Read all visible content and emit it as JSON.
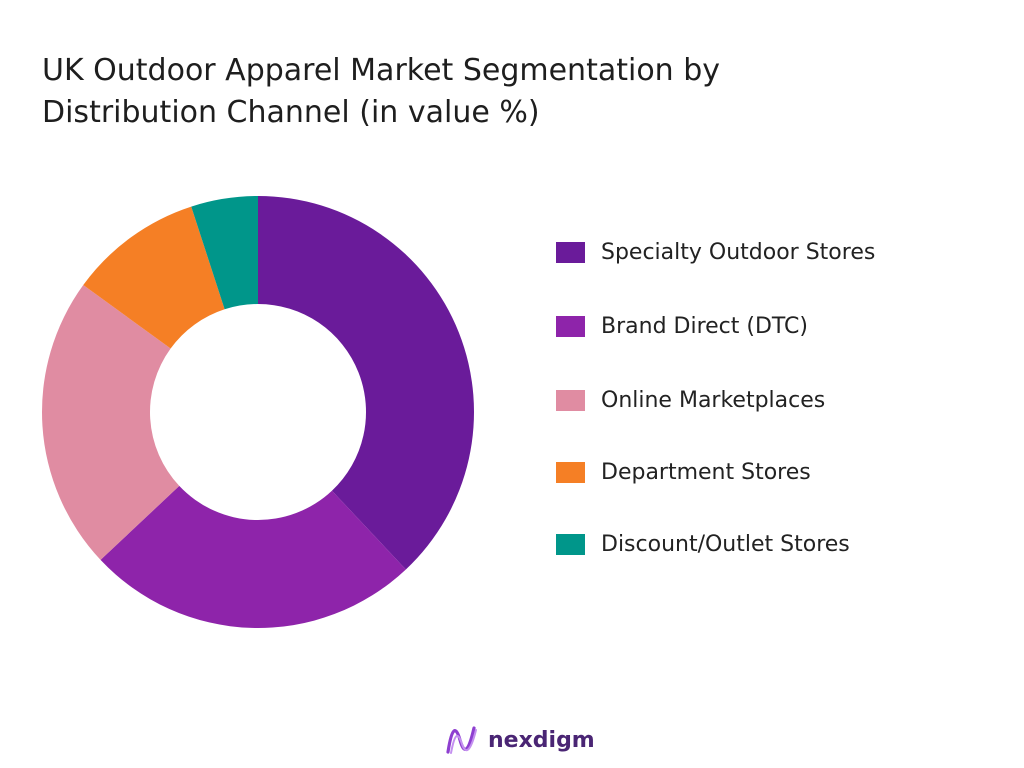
{
  "chart_data": {
    "type": "pie",
    "variant": "donut",
    "title": "UK Outdoor Apparel Market Segmentation by Distribution Channel (in value %)",
    "title_lines": [
      "UK Outdoor Apparel Market Segmentation by",
      "Distribution Channel (in value %)"
    ],
    "categories": [
      "Specialty Outdoor Stores",
      "Brand Direct (DTC)",
      "Online Marketplaces",
      "Department Stores",
      "Discount/Outlet Stores"
    ],
    "values": [
      38,
      25,
      22,
      10,
      5
    ],
    "colors": [
      "#6a1b9a",
      "#8e24aa",
      "#e08ca2",
      "#f57f25",
      "#00968a"
    ],
    "legend_position": "right",
    "data_labels": false
  },
  "brand": {
    "name": "nexdigm",
    "logo": "nexdigm-wave-logo"
  }
}
